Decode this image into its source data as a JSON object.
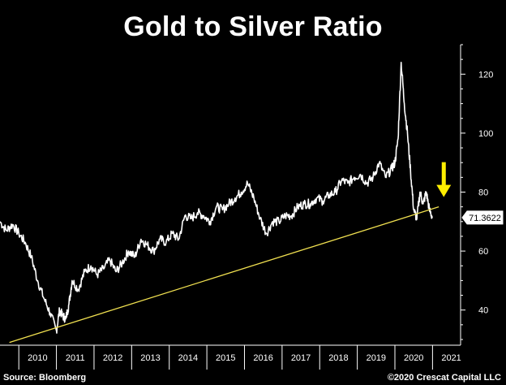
{
  "chart_data": {
    "type": "line",
    "title": "Gold to Silver Ratio",
    "xlabel": "",
    "ylabel": "",
    "ylim": [
      30,
      130
    ],
    "xlim": [
      "2009-07-01",
      "2021-09-30"
    ],
    "yticks": [
      40,
      60,
      80,
      100,
      120
    ],
    "xticks": [
      "2010",
      "2011",
      "2012",
      "2013",
      "2014",
      "2015",
      "2016",
      "2017",
      "2018",
      "2019",
      "2020",
      "2021"
    ],
    "y_axis_position": "right",
    "grid": false,
    "last_value_label": "71.3622",
    "series": [
      {
        "color": "#ffffff",
        "x": [
          "2009-07",
          "2009-09",
          "2009-11",
          "2010-01",
          "2010-03",
          "2010-05",
          "2010-07",
          "2010-09",
          "2010-11",
          "2011-01",
          "2011-02",
          "2011-03",
          "2011-04",
          "2011-05",
          "2011-06",
          "2011-08",
          "2011-10",
          "2011-12",
          "2012-02",
          "2012-04",
          "2012-06",
          "2012-08",
          "2012-10",
          "2012-12",
          "2013-02",
          "2013-04",
          "2013-06",
          "2013-08",
          "2013-10",
          "2013-12",
          "2014-02",
          "2014-04",
          "2014-06",
          "2014-08",
          "2014-10",
          "2014-12",
          "2015-02",
          "2015-04",
          "2015-06",
          "2015-08",
          "2015-10",
          "2015-12",
          "2016-02",
          "2016-04",
          "2016-06",
          "2016-08",
          "2016-10",
          "2016-12",
          "2017-02",
          "2017-04",
          "2017-06",
          "2017-08",
          "2017-10",
          "2017-12",
          "2018-02",
          "2018-04",
          "2018-06",
          "2018-08",
          "2018-10",
          "2018-12",
          "2019-02",
          "2019-04",
          "2019-06",
          "2019-08",
          "2019-10",
          "2019-12",
          "2020-01",
          "2020-02",
          "2020-03",
          "2020-04",
          "2020-05",
          "2020-06",
          "2020-07",
          "2020-08",
          "2020-09",
          "2020-10",
          "2020-11",
          "2020-12",
          "2021-01"
        ],
        "values": [
          70,
          67,
          69,
          66,
          63,
          58,
          50,
          44,
          39,
          33,
          40,
          38,
          37,
          42,
          50,
          47,
          53,
          55,
          52,
          54,
          57,
          53,
          56,
          60,
          58,
          64,
          62,
          60,
          64,
          63,
          66,
          64,
          72,
          71,
          73,
          72,
          70,
          75,
          74,
          76,
          78,
          80,
          83,
          78,
          71,
          66,
          70,
          70,
          72,
          72,
          75,
          76,
          76,
          78,
          77,
          79,
          80,
          84,
          83,
          85,
          86,
          83,
          85,
          90,
          85,
          88,
          90,
          98,
          124,
          110,
          100,
          87,
          74,
          71,
          80,
          76,
          80,
          74,
          71.36
        ],
        "trend": {
          "from": [
            "2009-10",
            29
          ],
          "to": [
            "2021-03",
            75
          ],
          "color": "#f0e050"
        }
      }
    ],
    "annotations": [
      {
        "type": "arrow",
        "color": "#ffee00",
        "direction": "down",
        "at": [
          "2021-02",
          75
        ]
      }
    ]
  },
  "footer": {
    "source": "Source: Bloomberg",
    "copyright": "©2020 Crescat Capital LLC"
  }
}
